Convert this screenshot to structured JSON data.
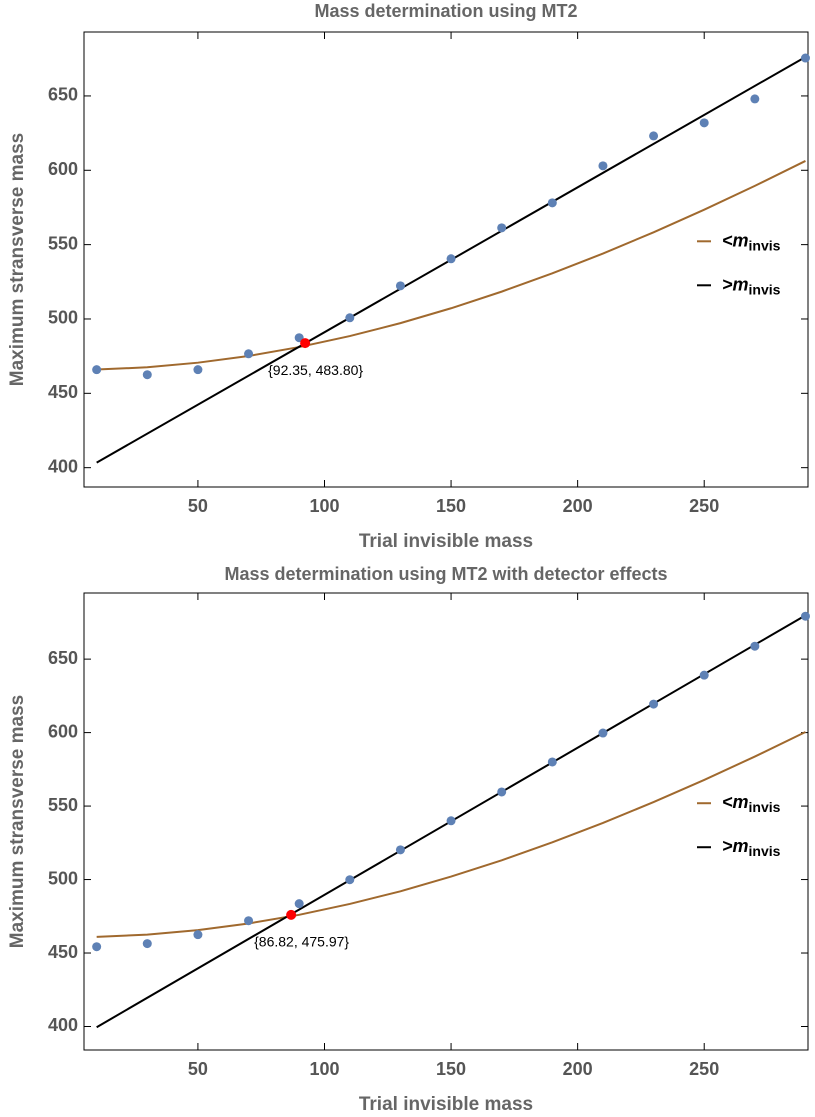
{
  "chart_data": [
    {
      "type": "scatter",
      "title": "Mass determination using MT2",
      "xlabel": "Trial invisible mass",
      "ylabel": "Maximum stransverse mass",
      "xlim": [
        5,
        291
      ],
      "ylim": [
        387,
        693
      ],
      "xticks": [
        50,
        100,
        150,
        200,
        250
      ],
      "yticks": [
        400,
        450,
        500,
        550,
        600,
        650
      ],
      "grid": false,
      "legend": "right",
      "series": [
        {
          "type": "scatter",
          "color": "#5e81b5",
          "x": [
            10,
            30,
            50,
            70,
            90,
            110,
            130,
            150,
            170,
            190,
            210,
            230,
            250,
            270,
            290
          ],
          "values": [
            465.9,
            462.5,
            465.9,
            476.6,
            487.4,
            500.8,
            522.3,
            540.5,
            561.3,
            578.1,
            603,
            623.1,
            631.9,
            648,
            675.5
          ]
        },
        {
          "type": "line",
          "name": "<m",
          "name_sub": "invis",
          "color": "#a0692e",
          "x": [
            10,
            30,
            50,
            70,
            90,
            110,
            130,
            150,
            170,
            190,
            210,
            230,
            250,
            270,
            290
          ],
          "values": [
            466.0,
            467.5,
            470.6,
            475.1,
            481.1,
            488.5,
            497.2,
            507.2,
            518.4,
            530.7,
            544.0,
            558.3,
            573.5,
            589.5,
            606.3
          ]
        },
        {
          "type": "line",
          "name": ">m",
          "name_sub": "invis",
          "color": "#000000",
          "x": [
            10,
            290
          ],
          "values": [
            403.4,
            676.2
          ]
        }
      ],
      "annotation": {
        "x": 92.35,
        "y": 483.8,
        "label": "{92.35, 483.80}",
        "color": "#ff0000"
      }
    },
    {
      "type": "scatter",
      "title": "Mass determination using MT2 with detector effects",
      "xlabel": "Trial invisible mass",
      "ylabel": "Maximum stransverse mass",
      "xlim": [
        5,
        291
      ],
      "ylim": [
        384,
        695
      ],
      "xticks": [
        50,
        100,
        150,
        200,
        250
      ],
      "yticks": [
        400,
        450,
        500,
        550,
        600,
        650
      ],
      "grid": false,
      "legend": "right",
      "series": [
        {
          "type": "scatter",
          "color": "#5e81b5",
          "x": [
            10,
            30,
            50,
            70,
            90,
            110,
            130,
            150,
            170,
            190,
            210,
            230,
            250,
            270,
            290
          ],
          "values": [
            454.3,
            456.4,
            462.5,
            472,
            483.6,
            499.9,
            520.2,
            540,
            559.6,
            580,
            599.7,
            619.4,
            639.1,
            658.8,
            679.2
          ]
        },
        {
          "type": "line",
          "name": "<m",
          "name_sub": "invis",
          "color": "#a0692e",
          "x": [
            10,
            30,
            50,
            70,
            90,
            110,
            130,
            150,
            170,
            190,
            210,
            230,
            250,
            270,
            290
          ],
          "values": [
            461.0,
            462.5,
            465.6,
            470.1,
            476.0,
            483.4,
            492.0,
            502.0,
            513.1,
            525.3,
            538.5,
            552.7,
            567.8,
            583.7,
            600.4
          ]
        },
        {
          "type": "line",
          "name": ">m",
          "name_sub": "invis",
          "color": "#000000",
          "x": [
            10,
            290
          ],
          "values": [
            399.5,
            679.8
          ]
        }
      ],
      "annotation": {
        "x": 86.82,
        "y": 475.97,
        "label": "{86.82, 475.97}",
        "color": "#ff0000"
      }
    }
  ]
}
